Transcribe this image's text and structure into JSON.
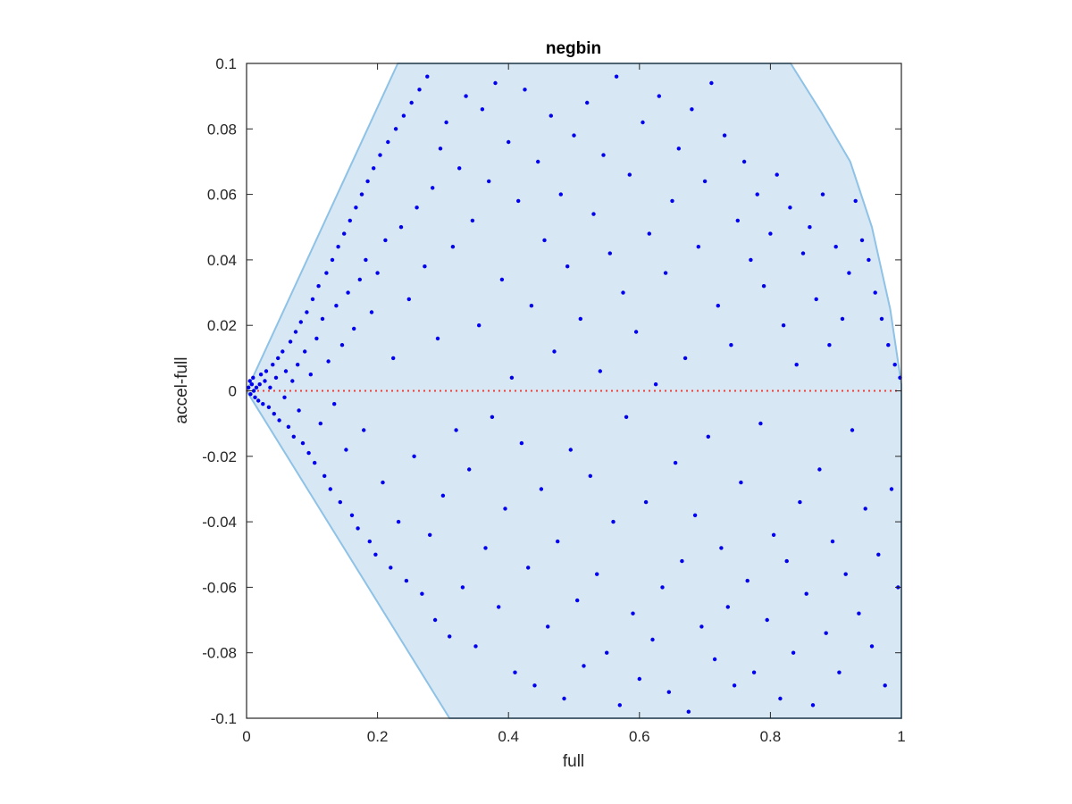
{
  "chart_data": {
    "type": "scatter",
    "title": "negbin",
    "xlabel": "full",
    "ylabel": "accel-full",
    "xlim": [
      0,
      1
    ],
    "ylim": [
      -0.1,
      0.1
    ],
    "xticks": [
      "0",
      "0.2",
      "0.4",
      "0.6",
      "0.8",
      "1"
    ],
    "yticks": [
      "-0.1",
      "-0.08",
      "-0.06",
      "-0.04",
      "-0.02",
      "0",
      "0.02",
      "0.04",
      "0.06",
      "0.08",
      "0.1"
    ],
    "grid": false,
    "legend": "none",
    "colors": {
      "points": "#0000ee",
      "region_fill": "#d7e7f3",
      "region_edge": "#8ec2e6",
      "zero_line": "#e8413c",
      "axes": "#262626"
    },
    "region_polygon": [
      [
        0,
        0
      ],
      [
        0.231,
        0.1
      ],
      [
        0.831,
        0.1
      ],
      [
        0.878,
        0.085
      ],
      [
        0.922,
        0.07
      ],
      [
        0.955,
        0.05
      ],
      [
        0.983,
        0.025
      ],
      [
        1,
        0.002
      ],
      [
        1,
        -0.1
      ],
      [
        0.31,
        -0.1
      ]
    ],
    "reference_line": {
      "y": 0,
      "style": "dotted"
    },
    "series": [
      {
        "values": [
          [
            0.003,
            0.001
          ],
          [
            0.006,
            -0.001
          ],
          [
            0.008,
            0.002
          ],
          [
            0.011,
            0.0
          ],
          [
            0.013,
            -0.002
          ],
          [
            0.005,
            0.003
          ],
          [
            0.01,
            0.004
          ],
          [
            0.015,
            0.001
          ],
          [
            0.018,
            -0.003
          ],
          [
            0.02,
            0.002
          ],
          [
            0.022,
            0.005
          ],
          [
            0.025,
            -0.004
          ],
          [
            0.028,
            0.003
          ],
          [
            0.03,
            0.006
          ],
          [
            0.034,
            -0.005
          ],
          [
            0.036,
            0.001
          ],
          [
            0.04,
            0.008
          ],
          [
            0.042,
            -0.007
          ],
          [
            0.045,
            0.004
          ],
          [
            0.048,
            0.01
          ],
          [
            0.05,
            -0.009
          ],
          [
            0.055,
            0.012
          ],
          [
            0.058,
            -0.002
          ],
          [
            0.06,
            0.006
          ],
          [
            0.064,
            -0.011
          ],
          [
            0.067,
            0.015
          ],
          [
            0.07,
            0.003
          ],
          [
            0.072,
            -0.014
          ],
          [
            0.075,
            0.018
          ],
          [
            0.078,
            0.008
          ],
          [
            0.08,
            -0.006
          ],
          [
            0.083,
            0.021
          ],
          [
            0.086,
            -0.016
          ],
          [
            0.089,
            0.012
          ],
          [
            0.092,
            0.024
          ],
          [
            0.095,
            -0.019
          ],
          [
            0.098,
            0.005
          ],
          [
            0.101,
            0.028
          ],
          [
            0.104,
            -0.022
          ],
          [
            0.107,
            0.016
          ],
          [
            0.11,
            0.032
          ],
          [
            0.113,
            -0.01
          ],
          [
            0.116,
            0.022
          ],
          [
            0.119,
            -0.026
          ],
          [
            0.122,
            0.036
          ],
          [
            0.125,
            0.009
          ],
          [
            0.128,
            -0.03
          ],
          [
            0.131,
            0.04
          ],
          [
            0.134,
            -0.004
          ],
          [
            0.137,
            0.026
          ],
          [
            0.14,
            0.044
          ],
          [
            0.143,
            -0.034
          ],
          [
            0.146,
            0.014
          ],
          [
            0.149,
            0.048
          ],
          [
            0.152,
            -0.018
          ],
          [
            0.155,
            0.03
          ],
          [
            0.158,
            0.052
          ],
          [
            0.161,
            -0.038
          ],
          [
            0.164,
            0.019
          ],
          [
            0.167,
            0.056
          ],
          [
            0.17,
            -0.042
          ],
          [
            0.173,
            0.034
          ],
          [
            0.176,
            0.06
          ],
          [
            0.179,
            -0.012
          ],
          [
            0.182,
            0.04
          ],
          [
            0.185,
            0.064
          ],
          [
            0.188,
            -0.046
          ],
          [
            0.191,
            0.024
          ],
          [
            0.194,
            0.068
          ],
          [
            0.197,
            -0.05
          ],
          [
            0.2,
            0.036
          ],
          [
            0.204,
            0.072
          ],
          [
            0.208,
            -0.028
          ],
          [
            0.212,
            0.046
          ],
          [
            0.216,
            0.076
          ],
          [
            0.22,
            -0.054
          ],
          [
            0.224,
            0.01
          ],
          [
            0.228,
            0.08
          ],
          [
            0.232,
            -0.04
          ],
          [
            0.236,
            0.05
          ],
          [
            0.24,
            0.084
          ],
          [
            0.244,
            -0.058
          ],
          [
            0.248,
            0.028
          ],
          [
            0.252,
            0.088
          ],
          [
            0.256,
            -0.02
          ],
          [
            0.26,
            0.056
          ],
          [
            0.264,
            0.092
          ],
          [
            0.268,
            -0.062
          ],
          [
            0.272,
            0.038
          ],
          [
            0.276,
            0.096
          ],
          [
            0.28,
            -0.044
          ],
          [
            0.284,
            0.062
          ],
          [
            0.288,
            -0.07
          ],
          [
            0.292,
            0.016
          ],
          [
            0.296,
            0.074
          ],
          [
            0.3,
            -0.032
          ],
          [
            0.305,
            0.082
          ],
          [
            0.31,
            -0.075
          ],
          [
            0.315,
            0.044
          ],
          [
            0.32,
            -0.012
          ],
          [
            0.325,
            0.068
          ],
          [
            0.33,
            -0.06
          ],
          [
            0.335,
            0.09
          ],
          [
            0.34,
            -0.024
          ],
          [
            0.345,
            0.052
          ],
          [
            0.35,
            -0.078
          ],
          [
            0.355,
            0.02
          ],
          [
            0.36,
            0.086
          ],
          [
            0.365,
            -0.048
          ],
          [
            0.37,
            0.064
          ],
          [
            0.375,
            -0.008
          ],
          [
            0.38,
            0.094
          ],
          [
            0.385,
            -0.066
          ],
          [
            0.39,
            0.034
          ],
          [
            0.395,
            -0.036
          ],
          [
            0.4,
            0.076
          ],
          [
            0.405,
            0.004
          ],
          [
            0.41,
            -0.086
          ],
          [
            0.415,
            0.058
          ],
          [
            0.42,
            -0.016
          ],
          [
            0.425,
            0.092
          ],
          [
            0.43,
            -0.054
          ],
          [
            0.435,
            0.026
          ],
          [
            0.44,
            -0.09
          ],
          [
            0.445,
            0.07
          ],
          [
            0.45,
            -0.03
          ],
          [
            0.455,
            0.046
          ],
          [
            0.46,
            -0.072
          ],
          [
            0.465,
            0.084
          ],
          [
            0.47,
            0.012
          ],
          [
            0.475,
            -0.046
          ],
          [
            0.48,
            0.06
          ],
          [
            0.485,
            -0.094
          ],
          [
            0.49,
            0.038
          ],
          [
            0.495,
            -0.018
          ],
          [
            0.5,
            0.078
          ],
          [
            0.505,
            -0.064
          ],
          [
            0.51,
            0.022
          ],
          [
            0.515,
            -0.084
          ],
          [
            0.52,
            0.088
          ],
          [
            0.525,
            -0.026
          ],
          [
            0.53,
            0.054
          ],
          [
            0.535,
            -0.056
          ],
          [
            0.54,
            0.006
          ],
          [
            0.545,
            0.072
          ],
          [
            0.55,
            -0.08
          ],
          [
            0.555,
            0.042
          ],
          [
            0.56,
            -0.04
          ],
          [
            0.565,
            0.096
          ],
          [
            0.57,
            -0.096
          ],
          [
            0.575,
            0.03
          ],
          [
            0.58,
            -0.008
          ],
          [
            0.585,
            0.066
          ],
          [
            0.59,
            -0.068
          ],
          [
            0.595,
            0.018
          ],
          [
            0.6,
            -0.088
          ],
          [
            0.605,
            0.082
          ],
          [
            0.61,
            -0.034
          ],
          [
            0.615,
            0.048
          ],
          [
            0.62,
            -0.076
          ],
          [
            0.625,
            0.002
          ],
          [
            0.63,
            0.09
          ],
          [
            0.635,
            -0.06
          ],
          [
            0.64,
            0.036
          ],
          [
            0.645,
            -0.092
          ],
          [
            0.65,
            0.058
          ],
          [
            0.655,
            -0.022
          ],
          [
            0.66,
            0.074
          ],
          [
            0.665,
            -0.052
          ],
          [
            0.67,
            0.01
          ],
          [
            0.675,
            -0.098
          ],
          [
            0.68,
            0.086
          ],
          [
            0.685,
            -0.038
          ],
          [
            0.69,
            0.044
          ],
          [
            0.695,
            -0.072
          ],
          [
            0.7,
            0.064
          ],
          [
            0.705,
            -0.014
          ],
          [
            0.71,
            0.094
          ],
          [
            0.715,
            -0.082
          ],
          [
            0.72,
            0.026
          ],
          [
            0.725,
            -0.048
          ],
          [
            0.73,
            0.078
          ],
          [
            0.735,
            -0.066
          ],
          [
            0.74,
            0.014
          ],
          [
            0.745,
            -0.09
          ],
          [
            0.75,
            0.052
          ],
          [
            0.755,
            -0.028
          ],
          [
            0.76,
            0.07
          ],
          [
            0.765,
            -0.058
          ],
          [
            0.77,
            0.04
          ],
          [
            0.775,
            -0.086
          ],
          [
            0.78,
            0.06
          ],
          [
            0.785,
            -0.01
          ],
          [
            0.79,
            0.032
          ],
          [
            0.795,
            -0.07
          ],
          [
            0.8,
            0.048
          ],
          [
            0.805,
            -0.044
          ],
          [
            0.81,
            0.066
          ],
          [
            0.815,
            -0.094
          ],
          [
            0.82,
            0.02
          ],
          [
            0.825,
            -0.052
          ],
          [
            0.83,
            0.056
          ],
          [
            0.835,
            -0.08
          ],
          [
            0.84,
            0.008
          ],
          [
            0.845,
            -0.034
          ],
          [
            0.85,
            0.042
          ],
          [
            0.855,
            -0.062
          ],
          [
            0.86,
            0.05
          ],
          [
            0.865,
            -0.096
          ],
          [
            0.87,
            0.028
          ],
          [
            0.875,
            -0.024
          ],
          [
            0.88,
            0.06
          ],
          [
            0.885,
            -0.074
          ],
          [
            0.89,
            0.014
          ],
          [
            0.895,
            -0.046
          ],
          [
            0.9,
            0.044
          ],
          [
            0.905,
            -0.086
          ],
          [
            0.91,
            0.022
          ],
          [
            0.915,
            -0.056
          ],
          [
            0.92,
            0.036
          ],
          [
            0.925,
            -0.012
          ],
          [
            0.93,
            0.058
          ],
          [
            0.935,
            -0.068
          ],
          [
            0.94,
            0.046
          ],
          [
            0.945,
            -0.036
          ],
          [
            0.95,
            0.04
          ],
          [
            0.955,
            -0.078
          ],
          [
            0.96,
            0.03
          ],
          [
            0.965,
            -0.05
          ],
          [
            0.97,
            0.022
          ],
          [
            0.975,
            -0.09
          ],
          [
            0.98,
            0.014
          ],
          [
            0.985,
            -0.03
          ],
          [
            0.99,
            0.008
          ],
          [
            0.995,
            -0.06
          ],
          [
            0.998,
            0.004
          ]
        ]
      }
    ]
  }
}
